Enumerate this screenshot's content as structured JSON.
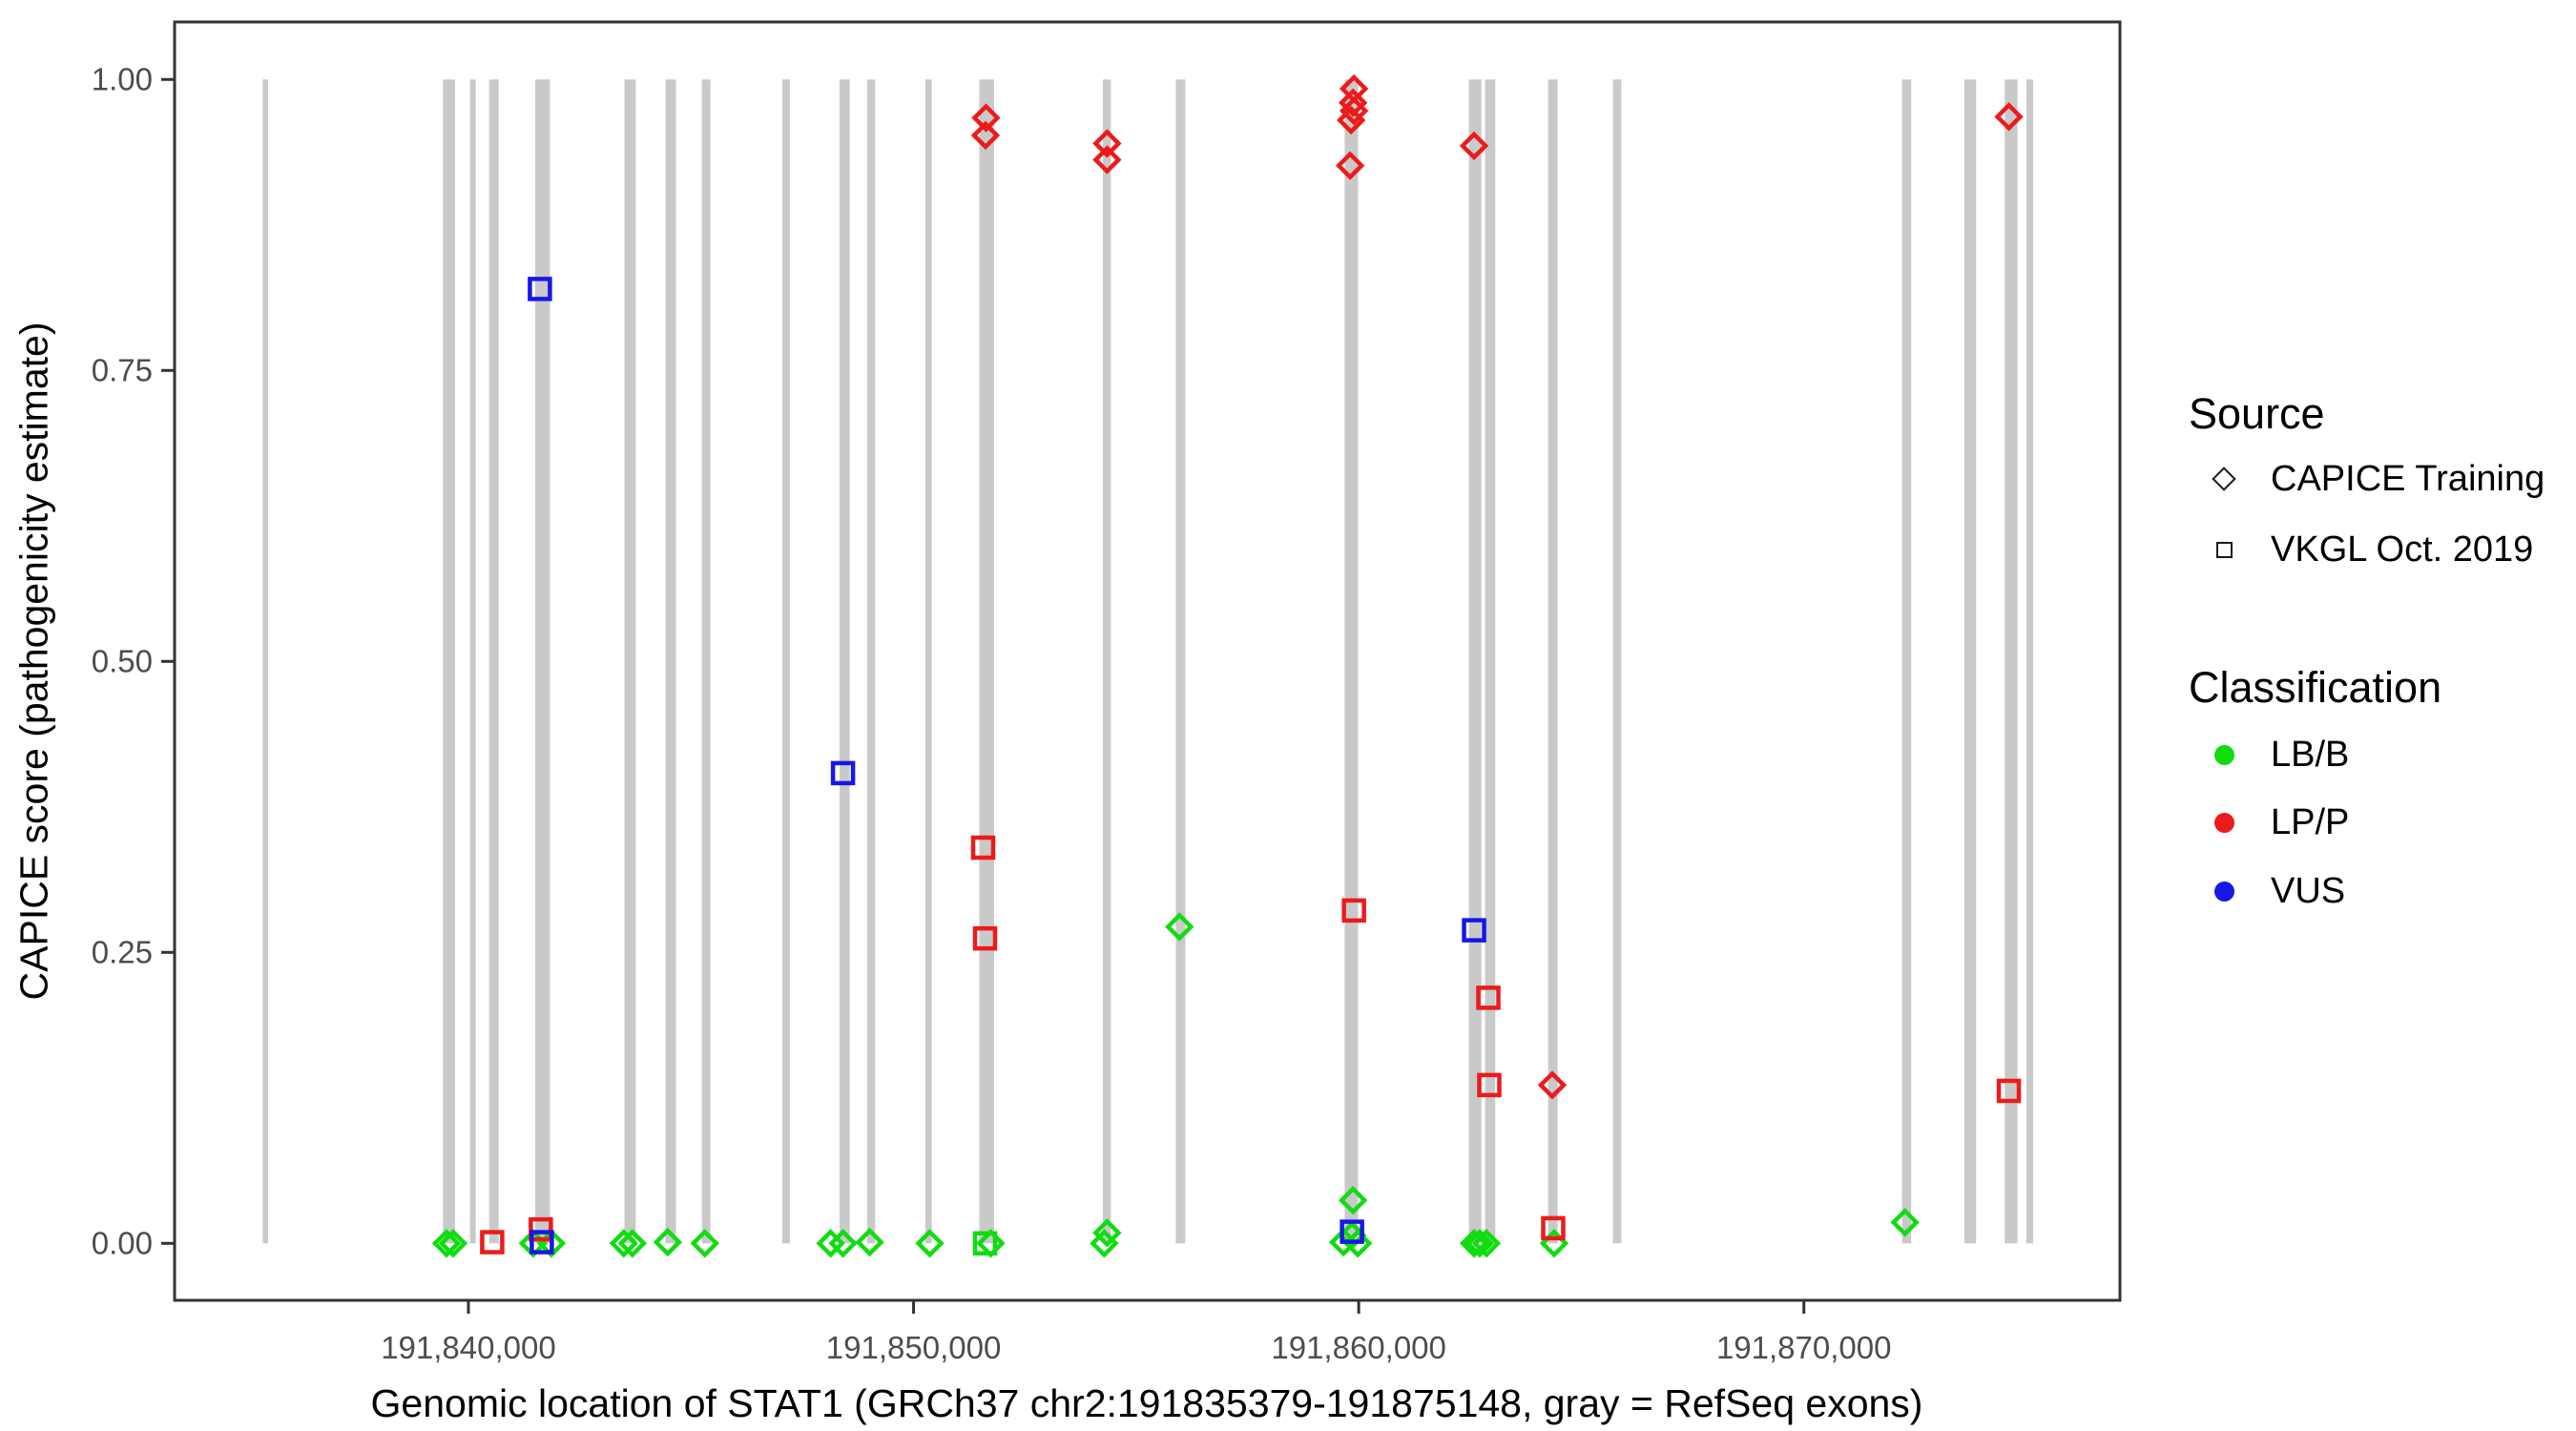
{
  "figure": {
    "background": "#ffffff",
    "panel_border_color": "#333333",
    "tick_label_color": "#4d4d4d",
    "exon_bar_color": "#c9c9c9",
    "class_colors": {
      "LB/B": "#10dc10",
      "LP/P": "#ec1b1b",
      "VUS": "#1717e8"
    }
  },
  "legend": {
    "source": {
      "title": "Source",
      "items": [
        {
          "label": "CAPICE Training",
          "shape": "diamond"
        },
        {
          "label": "VKGL Oct. 2019",
          "shape": "square"
        }
      ]
    },
    "classification": {
      "title": "Classification",
      "items": [
        {
          "label": "LB/B",
          "color": "#10dc10"
        },
        {
          "label": "LP/P",
          "color": "#ec1b1b"
        },
        {
          "label": "VUS",
          "color": "#1717e8"
        }
      ]
    }
  },
  "chart_data": {
    "type": "scatter",
    "title": "",
    "xlabel": "Genomic location of STAT1 (GRCh37 chr2:191835379-191875148, gray = RefSeq exons)",
    "ylabel": "CAPICE score (pathogenicity estimate)",
    "x_domain": [
      191833400,
      191877100
    ],
    "y_domain": [
      0,
      1
    ],
    "grid": false,
    "legend_position": "right",
    "x_ticks": [
      {
        "value": 191840000,
        "label": "191,840,000"
      },
      {
        "value": 191850000,
        "label": "191,850,000"
      },
      {
        "value": 191860000,
        "label": "191,860,000"
      },
      {
        "value": 191870000,
        "label": "191,870,000"
      }
    ],
    "y_ticks": [
      {
        "value": 0.0,
        "label": "0.00"
      },
      {
        "value": 0.25,
        "label": "0.25"
      },
      {
        "value": 0.5,
        "label": "0.50"
      },
      {
        "value": 0.75,
        "label": "0.75"
      },
      {
        "value": 1.0,
        "label": "1.00"
      }
    ],
    "refseq_exons": [
      [
        191835379,
        191835500
      ],
      [
        191839428,
        191839700
      ],
      [
        191840036,
        191840165
      ],
      [
        191840465,
        191840679
      ],
      [
        191841499,
        191841831
      ],
      [
        191843505,
        191843760
      ],
      [
        191844426,
        191844662
      ],
      [
        191845246,
        191845439
      ],
      [
        191847051,
        191847222
      ],
      [
        191848336,
        191848565
      ],
      [
        191848957,
        191849137
      ],
      [
        191850263,
        191850409
      ],
      [
        191851477,
        191851807
      ],
      [
        191854254,
        191854432
      ],
      [
        191855890,
        191856104
      ],
      [
        191859685,
        191859985
      ],
      [
        191862475,
        191862756
      ],
      [
        191862839,
        191863068
      ],
      [
        191864255,
        191864469
      ],
      [
        191865711,
        191865901
      ],
      [
        191872205,
        191872409
      ],
      [
        191873604,
        191873869
      ],
      [
        191874512,
        191874797
      ],
      [
        191874996,
        191875148
      ]
    ],
    "series": [
      {
        "name": "VKGL Oct. 2019 / LB/B",
        "source": "VKGL Oct. 2019",
        "shape": "square",
        "classification": "LB/B",
        "points": [
          [
            191851606,
            0.0
          ]
        ]
      },
      {
        "name": "CAPICE Training / LB/B",
        "source": "CAPICE Training",
        "shape": "diamond",
        "classification": "LB/B",
        "points": [
          [
            191839508,
            0.0
          ],
          [
            191839657,
            0.0
          ],
          [
            191841456,
            0.0
          ],
          [
            191841863,
            0.0
          ],
          [
            191843490,
            0.0
          ],
          [
            191843683,
            0.0
          ],
          [
            191844476,
            0.001
          ],
          [
            191845311,
            0.0
          ],
          [
            191848137,
            0.0
          ],
          [
            191848415,
            0.0
          ],
          [
            191849015,
            0.001
          ],
          [
            191850364,
            0.0
          ],
          [
            191851734,
            0.0
          ],
          [
            191854283,
            0.0
          ],
          [
            191854347,
            0.009
          ],
          [
            191855974,
            0.272
          ],
          [
            191859657,
            0.001
          ],
          [
            191859850,
            0.007
          ],
          [
            191859872,
            0.037
          ],
          [
            191859979,
            0.0
          ],
          [
            191862591,
            0.0
          ],
          [
            191862719,
            0.0
          ],
          [
            191862869,
            0.0
          ],
          [
            191864390,
            0.0
          ],
          [
            191872270,
            0.018
          ]
        ]
      },
      {
        "name": "VKGL Oct. 2019 / LP/P",
        "source": "VKGL Oct. 2019",
        "shape": "square",
        "classification": "LP/P",
        "points": [
          [
            191840535,
            0.001
          ],
          [
            191841627,
            0.012
          ],
          [
            191851563,
            0.34
          ],
          [
            191851606,
            0.262
          ],
          [
            191859893,
            0.286
          ],
          [
            191862912,
            0.211
          ],
          [
            191862933,
            0.136
          ],
          [
            191864369,
            0.013
          ],
          [
            191874604,
            0.131
          ]
        ]
      },
      {
        "name": "CAPICE Training / LP/P",
        "source": "CAPICE Training",
        "shape": "diamond",
        "classification": "LP/P",
        "points": [
          [
            191851616,
            0.952
          ],
          [
            191851627,
            0.967
          ],
          [
            191854347,
            0.945
          ],
          [
            191854347,
            0.931
          ],
          [
            191859807,
            0.926
          ],
          [
            191859829,
            0.965
          ],
          [
            191859872,
            0.98
          ],
          [
            191859893,
            0.992
          ],
          [
            191859893,
            0.973
          ],
          [
            191862591,
            0.943
          ],
          [
            191864347,
            0.136
          ],
          [
            191874604,
            0.968
          ]
        ]
      },
      {
        "name": "VKGL Oct. 2019 / VUS",
        "source": "VKGL Oct. 2019",
        "shape": "square",
        "classification": "VUS",
        "points": [
          [
            191841606,
            0.82
          ],
          [
            191841649,
            0.001
          ],
          [
            191848415,
            0.404
          ],
          [
            191859850,
            0.01
          ],
          [
            191862591,
            0.269
          ]
        ]
      }
    ]
  }
}
